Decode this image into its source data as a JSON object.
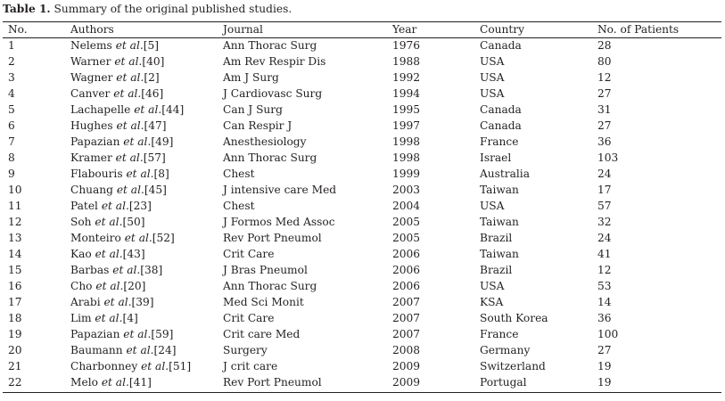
{
  "caption": {
    "label": "Table 1.",
    "text": " Summary of the original published studies."
  },
  "table": {
    "headers": [
      "No.",
      "Authors",
      "Journal",
      "Year",
      "Country",
      "No. of Patients"
    ],
    "rows": [
      {
        "no": "1",
        "author": "Nelems ",
        "etal": "et al.",
        "ref": "[5]",
        "journal": "Ann Thorac Surg",
        "year": "1976",
        "country": "Canada",
        "patients": "28"
      },
      {
        "no": "2",
        "author": "Warner ",
        "etal": "et al.",
        "ref": "[40]",
        "journal": "Am Rev Respir Dis",
        "year": "1988",
        "country": "USA",
        "patients": "80"
      },
      {
        "no": "3",
        "author": "Wagner ",
        "etal": "et al.",
        "ref": "[2]",
        "journal": "Am J Surg",
        "year": "1992",
        "country": "USA",
        "patients": "12"
      },
      {
        "no": "4",
        "author": "Canver ",
        "etal": "et al.",
        "ref": "[46]",
        "journal": "J Cardiovasc Surg",
        "year": "1994",
        "country": "USA",
        "patients": "27"
      },
      {
        "no": "5",
        "author": "Lachapelle ",
        "etal": "et al.",
        "ref": "[44]",
        "journal": "Can J Surg",
        "year": "1995",
        "country": "Canada",
        "patients": "31"
      },
      {
        "no": "6",
        "author": "Hughes ",
        "etal": "et al.",
        "ref": "[47]",
        "journal": "Can Respir  J",
        "year": "1997",
        "country": "Canada",
        "patients": "27"
      },
      {
        "no": "7",
        "author": "Papazian ",
        "etal": "et al.",
        "ref": "[49]",
        "journal": "Anesthesiology",
        "year": "1998",
        "country": "France",
        "patients": "36"
      },
      {
        "no": "8",
        "author": "Kramer ",
        "etal": "et al.",
        "ref": "[57]",
        "journal": "Ann Thorac Surg",
        "year": "1998",
        "country": "Israel",
        "patients": "103"
      },
      {
        "no": "9",
        "author": "Flabouris ",
        "etal": "et al.",
        "ref": "[8]",
        "journal": "Chest",
        "year": "1999",
        "country": "Australia",
        "patients": "24"
      },
      {
        "no": "10",
        "author": "Chuang ",
        "etal": "et al.",
        "ref": "[45]",
        "journal": "J intensive care Med",
        "year": "2003",
        "country": "Taiwan",
        "patients": "17"
      },
      {
        "no": "11",
        "author": "Patel ",
        "etal": "et al.",
        "ref": "[23]",
        "journal": "Chest",
        "year": "2004",
        "country": "USA",
        "patients": "57"
      },
      {
        "no": "12",
        "author": "Soh ",
        "etal": "et al.",
        "ref": "[50]",
        "journal": "J  Formos Med Assoc",
        "year": "2005",
        "country": "Taiwan",
        "patients": "32"
      },
      {
        "no": "13",
        "author": "Monteiro ",
        "etal": "et al.",
        "ref": "[52]",
        "journal": "Rev Port Pneumol",
        "year": "2005",
        "country": "Brazil",
        "patients": "24"
      },
      {
        "no": "14",
        "author": "Kao ",
        "etal": "et al.",
        "ref": "[43]",
        "journal": "Crit Care",
        "year": "2006",
        "country": "Taiwan",
        "patients": "41"
      },
      {
        "no": "15",
        "author": "Barbas ",
        "etal": "et al.",
        "ref": "[38]",
        "journal": "J Bras Pneumol",
        "year": "2006",
        "country": "Brazil",
        "patients": "12"
      },
      {
        "no": "16",
        "author": "Cho ",
        "etal": "et al.",
        "ref": "[20]",
        "journal": "Ann Thorac Surg",
        "year": "2006",
        "country": "USA",
        "patients": "53"
      },
      {
        "no": "17",
        "author": "Arabi ",
        "etal": "et al.",
        "ref": "[39]",
        "journal": "Med Sci Monit",
        "year": "2007",
        "country": "KSA",
        "patients": "14"
      },
      {
        "no": "18",
        "author": "Lim ",
        "etal": "et al.",
        "ref": "[4]",
        "journal": "Crit Care",
        "year": "2007",
        "country": "South Korea",
        "patients": "36"
      },
      {
        "no": "19",
        "author": "Papazian ",
        "etal": "et al.",
        "ref": "[59]",
        "journal": "Crit care Med",
        "year": "2007",
        "country": "France",
        "patients": "100"
      },
      {
        "no": "20",
        "author": "Baumann ",
        "etal": "et al.",
        "ref": "[24]",
        "journal": "Surgery",
        "year": "2008",
        "country": "Germany",
        "patients": "27"
      },
      {
        "no": "21",
        "author": "Charbonney ",
        "etal": "et al.",
        "ref": "[51]",
        "journal": "J crit care",
        "year": "2009",
        "country": "Switzerland",
        "patients": "19"
      },
      {
        "no": "22",
        "author": "Melo ",
        "etal": "et al.",
        "ref": "[41]",
        "journal": "Rev Port Pneumol",
        "year": "2009",
        "country": "Portugal",
        "patients": "19"
      }
    ]
  }
}
